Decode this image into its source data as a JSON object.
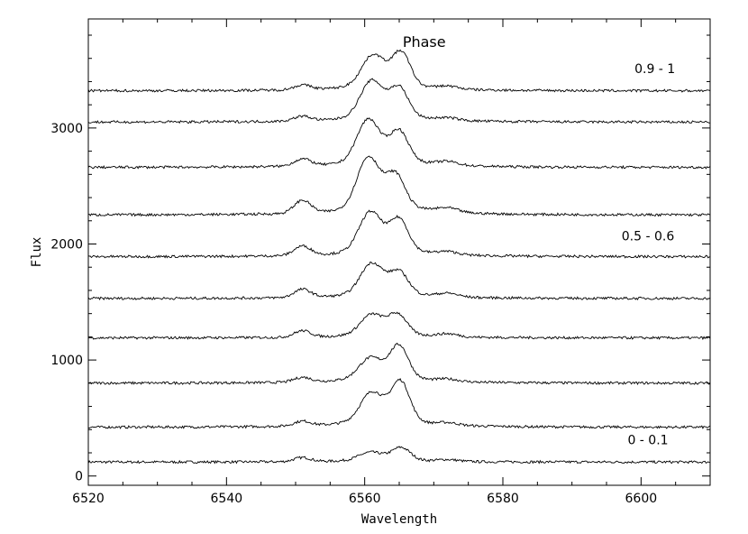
{
  "chart_data": {
    "type": "line",
    "title": "",
    "xlabel": "Wavelength",
    "ylabel": "Flux",
    "xlim": [
      6520,
      6610
    ],
    "ylim": [
      -80,
      3940
    ],
    "x_ticks": [
      6520,
      6540,
      6560,
      6580,
      6600
    ],
    "y_ticks": [
      0,
      1000,
      2000,
      3000
    ],
    "grid": false,
    "legend_title": "Phase",
    "annotations": [
      {
        "text": "0.9 - 1",
        "x": 6602,
        "y": 3475
      },
      {
        "text": "0.5 - 0.6",
        "x": 6601,
        "y": 2030
      },
      {
        "text": "0 - 0.1",
        "x": 6601,
        "y": 275
      }
    ],
    "series": [
      {
        "baseline": 120,
        "shape": {
          "b1": 35,
          "b2": 15,
          "main": 120,
          "c1": 6560.8,
          "a1": 0.6,
          "c2": 6565.3,
          "a2": 1.0
        }
      },
      {
        "baseline": 420,
        "shape": {
          "b1": 40,
          "b2": 20,
          "main": 380,
          "c1": 6561.0,
          "a1": 0.7,
          "c2": 6565.2,
          "a2": 1.0
        }
      },
      {
        "baseline": 800,
        "shape": {
          "b1": 40,
          "b2": 20,
          "main": 310,
          "c1": 6560.8,
          "a1": 0.6,
          "c2": 6565.0,
          "a2": 1.0
        }
      },
      {
        "baseline": 1190,
        "shape": {
          "b1": 55,
          "b2": 25,
          "main": 210,
          "c1": 6561.0,
          "a1": 0.9,
          "c2": 6564.8,
          "a2": 0.9
        }
      },
      {
        "baseline": 1530,
        "shape": {
          "b1": 70,
          "b2": 30,
          "main": 290,
          "c1": 6561.0,
          "a1": 1.0,
          "c2": 6565.0,
          "a2": 0.7
        }
      },
      {
        "baseline": 1890,
        "shape": {
          "b1": 80,
          "b2": 25,
          "main": 370,
          "c1": 6560.8,
          "a1": 1.0,
          "c2": 6565.0,
          "a2": 0.8
        }
      },
      {
        "baseline": 2250,
        "shape": {
          "b1": 110,
          "b2": 35,
          "main": 480,
          "c1": 6560.5,
          "a1": 1.0,
          "c2": 6564.5,
          "a2": 0.6
        }
      },
      {
        "baseline": 2660,
        "shape": {
          "b1": 60,
          "b2": 30,
          "main": 400,
          "c1": 6560.5,
          "a1": 1.0,
          "c2": 6565.0,
          "a2": 0.7
        }
      },
      {
        "baseline": 3050,
        "shape": {
          "b1": 40,
          "b2": 20,
          "main": 340,
          "c1": 6561.0,
          "a1": 1.0,
          "c2": 6565.0,
          "a2": 0.8
        }
      },
      {
        "baseline": 3320,
        "shape": {
          "b1": 40,
          "b2": 25,
          "main": 320,
          "c1": 6561.2,
          "a1": 0.9,
          "c2": 6565.3,
          "a2": 1.0
        }
      }
    ]
  }
}
